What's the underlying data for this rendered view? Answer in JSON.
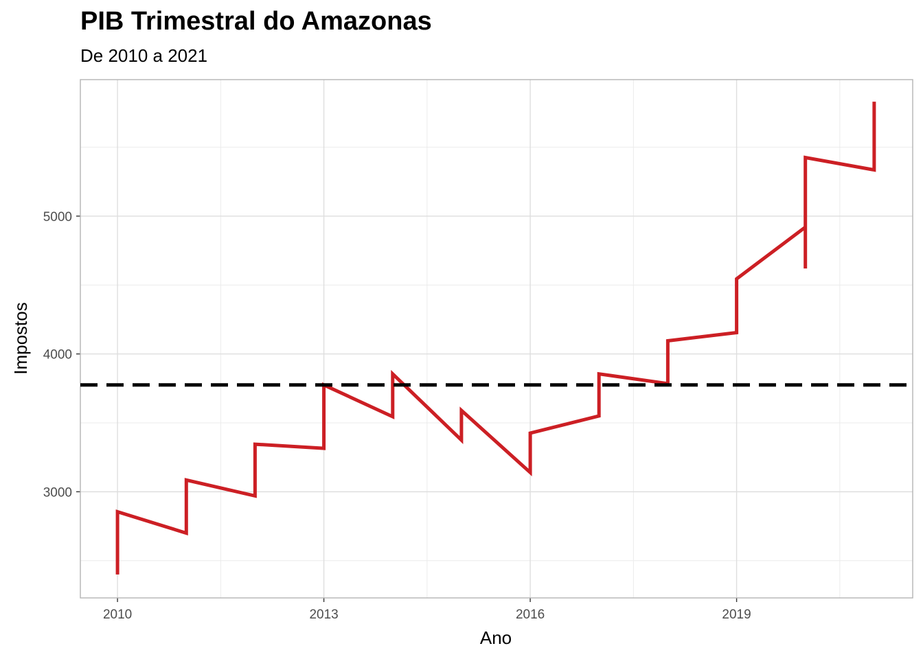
{
  "chart_data": {
    "type": "line",
    "title": "PIB Trimestral do Amazonas",
    "subtitle": "De 2010 a 2021",
    "xlabel": "Ano",
    "ylabel": "Impostos",
    "xlim": [
      2009.46,
      2021.56
    ],
    "ylim": [
      2230,
      5990
    ],
    "x_ticks": [
      2010,
      2013,
      2016,
      2019
    ],
    "y_ticks": [
      3000,
      4000,
      5000
    ],
    "grid": true,
    "reference_line": {
      "y": 3775,
      "style": "dashed",
      "color": "#000000"
    },
    "series": [
      {
        "color": "#cc1f24",
        "x": [
          2010,
          2010,
          2011,
          2011,
          2012,
          2012,
          2013,
          2013,
          2014,
          2014,
          2015,
          2015,
          2016,
          2016,
          2017,
          2017,
          2018,
          2018,
          2019,
          2019,
          2020,
          2020,
          2020,
          2021,
          2021
        ],
        "y": [
          2400,
          2855,
          2700,
          3085,
          2970,
          3345,
          3315,
          3775,
          3545,
          3855,
          3375,
          3590,
          3140,
          3425,
          3550,
          3855,
          3785,
          4095,
          4155,
          4545,
          4920,
          4620,
          5425,
          5335,
          5830
        ]
      }
    ]
  }
}
